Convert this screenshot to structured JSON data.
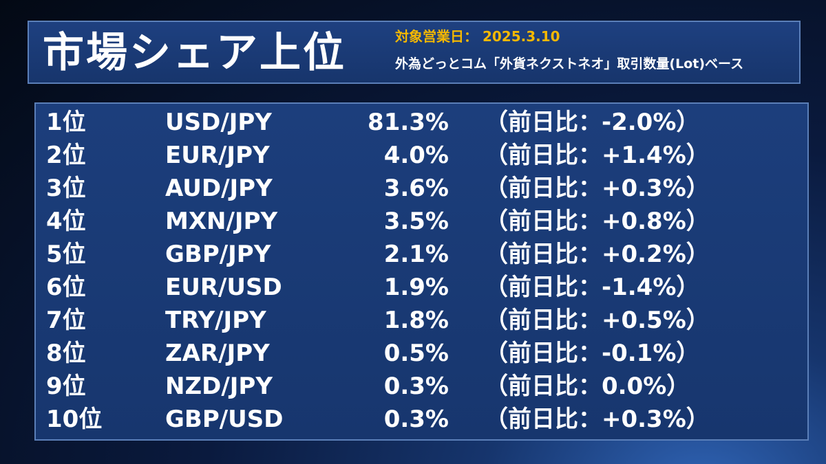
{
  "header": {
    "title": "市場シェア上位",
    "date_line": "対象営業日： 2025.3.10",
    "subtitle": "外為どっとコム「外貨ネクストネオ」取引数量(Lot)ベース"
  },
  "colors": {
    "accent_date": "#f5b800",
    "panel_border": "#5b7fb8",
    "panel_bg": "#1c3e7c"
  },
  "rows": [
    {
      "rank": "1位",
      "pair": "USD/JPY",
      "share": "81.3%",
      "change": "（前日比：-2.0%）"
    },
    {
      "rank": "2位",
      "pair": "EUR/JPY",
      "share": "4.0%",
      "change": "（前日比：+1.4%）"
    },
    {
      "rank": "3位",
      "pair": "AUD/JPY",
      "share": "3.6%",
      "change": "（前日比：+0.3%）"
    },
    {
      "rank": "4位",
      "pair": "MXN/JPY",
      "share": "3.5%",
      "change": "（前日比：+0.8%）"
    },
    {
      "rank": "5位",
      "pair": "GBP/JPY",
      "share": "2.1%",
      "change": "（前日比：+0.2%）"
    },
    {
      "rank": "6位",
      "pair": "EUR/USD",
      "share": "1.9%",
      "change": "（前日比：-1.4%）"
    },
    {
      "rank": "7位",
      "pair": "TRY/JPY",
      "share": "1.8%",
      "change": "（前日比：+0.5%）"
    },
    {
      "rank": "8位",
      "pair": "ZAR/JPY",
      "share": "0.5%",
      "change": "（前日比：-0.1%）"
    },
    {
      "rank": "9位",
      "pair": "NZD/JPY",
      "share": "0.3%",
      "change": "（前日比：0.0%）"
    },
    {
      "rank": "10位",
      "pair": "GBP/USD",
      "share": "0.3%",
      "change": "（前日比：+0.3%）"
    }
  ]
}
